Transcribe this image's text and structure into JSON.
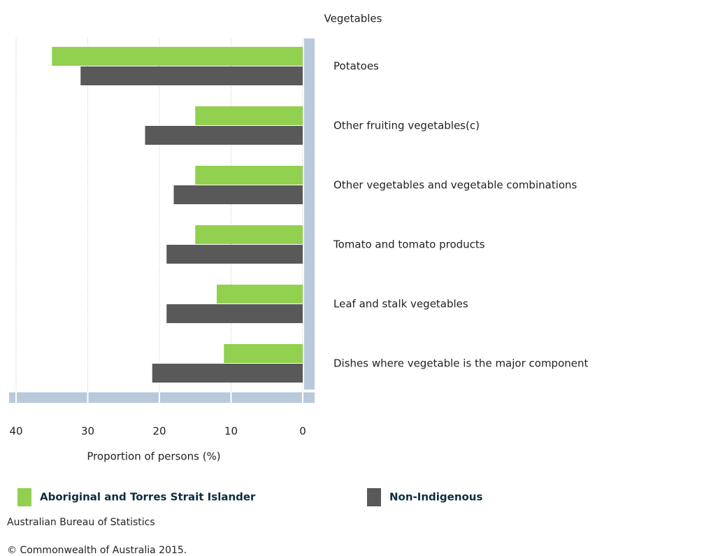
{
  "chart_data": {
    "type": "barh",
    "title": "Vegetables",
    "categories": [
      "Potatoes",
      "Other fruiting vegetables(c)",
      "Other vegetables and vegetable combinations",
      "Tomato and tomato products",
      "Leaf and stalk vegetables",
      "Dishes where vegetable is the major component"
    ],
    "series": [
      {
        "name": "Aboriginal and Torres Strait Islander",
        "color": "#92d050",
        "values": [
          35,
          15,
          15,
          15,
          12,
          11
        ]
      },
      {
        "name": "Non-Indigenous",
        "color": "#595959",
        "values": [
          31,
          22,
          18,
          19,
          19,
          21
        ]
      }
    ],
    "xlabel": "Proportion of persons (%)",
    "xlim": [
      0,
      40
    ],
    "xticks": [
      0,
      10,
      20,
      30,
      40
    ],
    "x_reversed": true,
    "grid": true,
    "source": "Australian Bureau of Statistics",
    "copyright": "© Commonwealth of Australia 2015."
  }
}
